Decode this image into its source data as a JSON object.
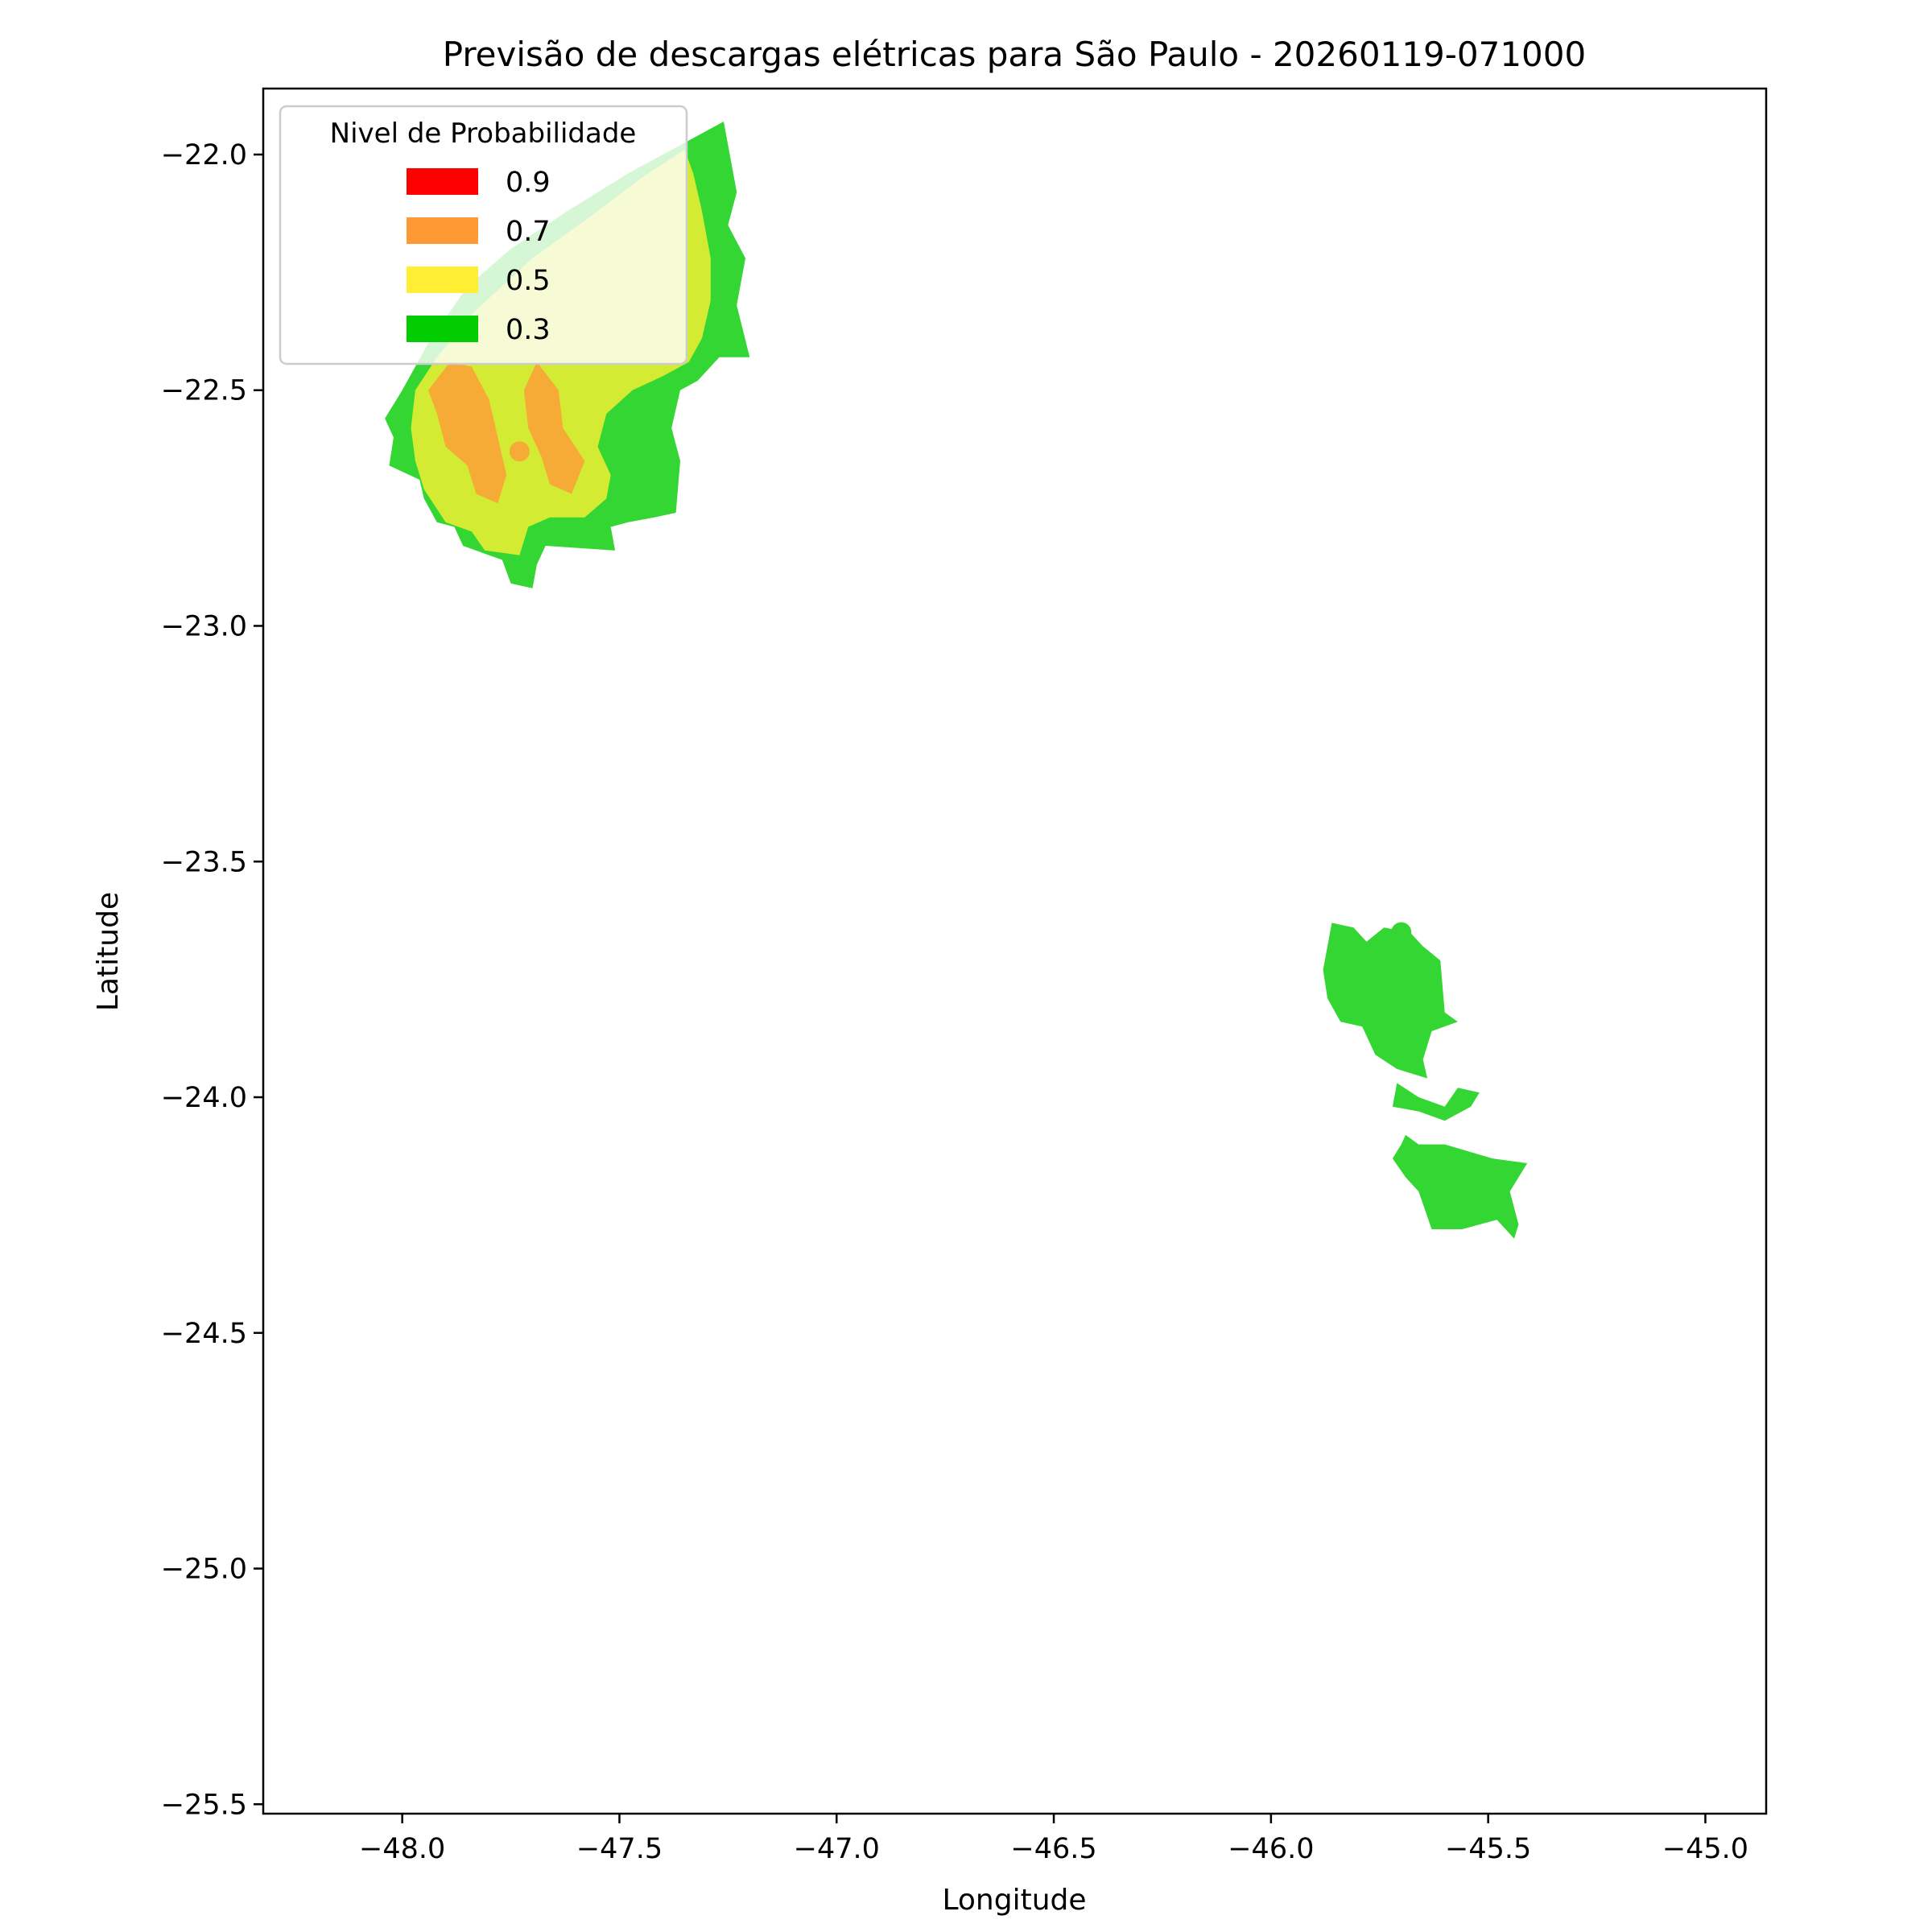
{
  "chart_data": {
    "type": "map",
    "title": "Previsão de descargas elétricas para São Paulo - 20260119-071000",
    "xlabel": "Longitude",
    "ylabel": "Latitude",
    "xlim": [
      -48.32,
      -44.86
    ],
    "ylim": [
      -25.52,
      -21.86
    ],
    "x_ticks": [
      -48.0,
      -47.5,
      -47.0,
      -46.5,
      -46.0,
      -45.5,
      -45.0
    ],
    "x_tick_labels": [
      "−48.0",
      "−47.5",
      "−47.0",
      "−46.5",
      "−46.0",
      "−45.5",
      "−45.0"
    ],
    "y_ticks": [
      -22.0,
      -22.5,
      -23.0,
      -23.5,
      -24.0,
      -24.5,
      -25.0,
      -25.5
    ],
    "y_tick_labels": [
      "−22.0",
      "−22.5",
      "−23.0",
      "−23.5",
      "−24.0",
      "−24.5",
      "−25.0",
      "−25.5"
    ],
    "grid": false,
    "legend": {
      "title": "Nivel de Probabilidade",
      "placement": "top-left",
      "entries": [
        {
          "label": "0.9",
          "color": "#ff0000"
        },
        {
          "label": "0.7",
          "color": "#ff9933"
        },
        {
          "label": "0.5",
          "color": "#ffee33"
        },
        {
          "label": "0.3",
          "color": "#00cc00"
        }
      ]
    },
    "regions": [
      {
        "level": "0.3",
        "color": "#33d633",
        "polygon": [
          [
            -47.3,
            -21.95
          ],
          [
            -47.26,
            -21.93
          ],
          [
            -47.23,
            -22.08
          ],
          [
            -47.25,
            -22.15
          ],
          [
            -47.21,
            -22.22
          ],
          [
            -47.23,
            -22.32
          ],
          [
            -47.2,
            -22.43
          ],
          [
            -47.27,
            -22.43
          ],
          [
            -47.32,
            -22.48
          ],
          [
            -47.36,
            -22.5
          ],
          [
            -47.38,
            -22.58
          ],
          [
            -47.36,
            -22.65
          ],
          [
            -47.37,
            -22.76
          ],
          [
            -47.42,
            -22.77
          ],
          [
            -47.48,
            -22.78
          ],
          [
            -47.52,
            -22.79
          ],
          [
            -47.51,
            -22.84
          ],
          [
            -47.67,
            -22.83
          ],
          [
            -47.69,
            -22.87
          ],
          [
            -47.7,
            -22.92
          ],
          [
            -47.75,
            -22.91
          ],
          [
            -47.77,
            -22.86
          ],
          [
            -47.8,
            -22.85
          ],
          [
            -47.86,
            -22.83
          ],
          [
            -47.88,
            -22.79
          ],
          [
            -47.92,
            -22.78
          ],
          [
            -47.95,
            -22.73
          ],
          [
            -47.96,
            -22.69
          ],
          [
            -48.03,
            -22.66
          ],
          [
            -48.02,
            -22.6
          ],
          [
            -48.04,
            -22.56
          ],
          [
            -48.0,
            -22.5
          ],
          [
            -47.94,
            -22.4
          ],
          [
            -47.85,
            -22.28
          ],
          [
            -47.75,
            -22.2
          ],
          [
            -47.62,
            -22.12
          ],
          [
            -47.48,
            -22.04
          ],
          [
            -47.3,
            -21.95
          ]
        ]
      },
      {
        "level": "0.5",
        "color": "#d3ec33",
        "polygon": [
          [
            -47.35,
            -21.99
          ],
          [
            -47.33,
            -22.04
          ],
          [
            -47.31,
            -22.12
          ],
          [
            -47.29,
            -22.22
          ],
          [
            -47.29,
            -22.31
          ],
          [
            -47.31,
            -22.39
          ],
          [
            -47.34,
            -22.44
          ],
          [
            -47.4,
            -22.47
          ],
          [
            -47.47,
            -22.5
          ],
          [
            -47.53,
            -22.55
          ],
          [
            -47.55,
            -22.62
          ],
          [
            -47.52,
            -22.68
          ],
          [
            -47.53,
            -22.73
          ],
          [
            -47.58,
            -22.77
          ],
          [
            -47.66,
            -22.77
          ],
          [
            -47.71,
            -22.79
          ],
          [
            -47.73,
            -22.85
          ],
          [
            -47.81,
            -22.84
          ],
          [
            -47.84,
            -22.8
          ],
          [
            -47.9,
            -22.78
          ],
          [
            -47.95,
            -22.71
          ],
          [
            -47.97,
            -22.65
          ],
          [
            -47.98,
            -22.58
          ],
          [
            -47.97,
            -22.5
          ],
          [
            -47.92,
            -22.43
          ],
          [
            -47.83,
            -22.33
          ],
          [
            -47.7,
            -22.22
          ],
          [
            -47.55,
            -22.12
          ],
          [
            -47.45,
            -22.05
          ],
          [
            -47.35,
            -21.99
          ]
        ]
      },
      {
        "level": "0.7",
        "color": "#f6ab37",
        "polygon": [
          [
            -47.89,
            -22.44
          ],
          [
            -47.94,
            -22.5
          ],
          [
            -47.92,
            -22.55
          ],
          [
            -47.9,
            -22.62
          ],
          [
            -47.85,
            -22.66
          ],
          [
            -47.83,
            -22.72
          ],
          [
            -47.78,
            -22.74
          ],
          [
            -47.76,
            -22.68
          ],
          [
            -47.78,
            -22.6
          ],
          [
            -47.8,
            -22.52
          ],
          [
            -47.84,
            -22.45
          ],
          [
            -47.89,
            -22.44
          ]
        ]
      },
      {
        "level": "0.7",
        "color": "#f6ab37",
        "polygon": [
          [
            -47.69,
            -22.44
          ],
          [
            -47.64,
            -22.5
          ],
          [
            -47.63,
            -22.58
          ],
          [
            -47.58,
            -22.65
          ],
          [
            -47.61,
            -22.72
          ],
          [
            -47.66,
            -22.7
          ],
          [
            -47.68,
            -22.64
          ],
          [
            -47.71,
            -22.58
          ],
          [
            -47.72,
            -22.5
          ],
          [
            -47.69,
            -22.44
          ]
        ]
      },
      {
        "level": "0.3",
        "color": "#33d633",
        "polygon": [
          [
            -45.86,
            -23.63
          ],
          [
            -45.81,
            -23.64
          ],
          [
            -45.78,
            -23.67
          ],
          [
            -45.74,
            -23.64
          ],
          [
            -45.68,
            -23.65
          ],
          [
            -45.65,
            -23.68
          ],
          [
            -45.61,
            -23.71
          ],
          [
            -45.6,
            -23.82
          ],
          [
            -45.57,
            -23.84
          ],
          [
            -45.63,
            -23.86
          ],
          [
            -45.65,
            -23.92
          ],
          [
            -45.64,
            -23.96
          ],
          [
            -45.71,
            -23.94
          ],
          [
            -45.76,
            -23.91
          ],
          [
            -45.79,
            -23.85
          ],
          [
            -45.84,
            -23.84
          ],
          [
            -45.87,
            -23.79
          ],
          [
            -45.88,
            -23.73
          ],
          [
            -45.86,
            -23.63
          ]
        ]
      },
      {
        "level": "0.3",
        "color": "#33d633",
        "polygon": [
          [
            -45.71,
            -23.97
          ],
          [
            -45.66,
            -24.0
          ],
          [
            -45.6,
            -24.02
          ],
          [
            -45.57,
            -23.98
          ],
          [
            -45.52,
            -23.99
          ],
          [
            -45.54,
            -24.02
          ],
          [
            -45.6,
            -24.05
          ],
          [
            -45.66,
            -24.03
          ],
          [
            -45.72,
            -24.02
          ],
          [
            -45.71,
            -23.97
          ]
        ]
      },
      {
        "level": "0.3",
        "color": "#33d633",
        "polygon": [
          [
            -45.69,
            -24.08
          ],
          [
            -45.66,
            -24.1
          ],
          [
            -45.64,
            -24.1
          ],
          [
            -45.6,
            -24.1
          ],
          [
            -45.49,
            -24.13
          ],
          [
            -45.41,
            -24.14
          ],
          [
            -45.45,
            -24.2
          ],
          [
            -45.43,
            -24.27
          ],
          [
            -45.44,
            -24.3
          ],
          [
            -45.48,
            -24.26
          ],
          [
            -45.52,
            -24.27
          ],
          [
            -45.56,
            -24.28
          ],
          [
            -45.63,
            -24.28
          ],
          [
            -45.66,
            -24.2
          ],
          [
            -45.69,
            -24.17
          ],
          [
            -45.72,
            -24.13
          ],
          [
            -45.7,
            -24.1
          ],
          [
            -45.69,
            -24.08
          ]
        ]
      }
    ],
    "points": [
      {
        "x": -47.73,
        "y": -22.63,
        "color": "#f6ab37"
      },
      {
        "x": -45.7,
        "y": -23.65,
        "color": "#33d633"
      }
    ]
  }
}
